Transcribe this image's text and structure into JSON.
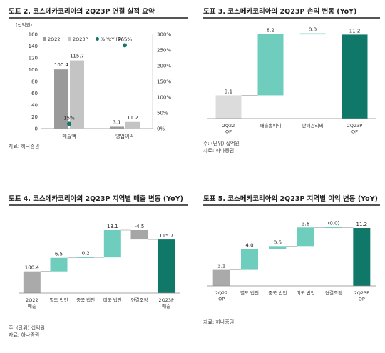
{
  "charts": {
    "c2": {
      "title": "도표 2. 코스메카코리아의 2Q23P 연결 실적 요약",
      "notes": [
        "자료: 하나증권"
      ],
      "chart_data": {
        "type": "bar",
        "categories": [
          "매출액",
          "영업이익"
        ],
        "series": [
          {
            "name": "2Q22",
            "values": [
              100.4,
              3.1
            ],
            "color": "#9a9a9a"
          },
          {
            "name": "2Q23P",
            "values": [
              115.7,
              11.2
            ],
            "color": "#c4c4c4"
          }
        ],
        "yoy": {
          "name": "% YoY (우)",
          "values": [
            15,
            265
          ],
          "labels": [
            "15%",
            "265%"
          ],
          "color": "#0f7868"
        },
        "y_unit_label": "(십억원)",
        "ylim": [
          0,
          160
        ],
        "yticks": [
          0,
          20,
          40,
          60,
          80,
          100,
          120,
          140,
          160
        ],
        "y2lim": [
          0,
          300
        ],
        "y2ticks": [
          "0%",
          "50%",
          "100%",
          "150%",
          "200%",
          "250%",
          "300%"
        ]
      }
    },
    "c3": {
      "title": "도표 3. 코스메카코리아의 2Q23P 손익 변동 (YoY)",
      "notes": [
        "주: (단위) 십억원",
        "자료: 하나증권"
      ],
      "chart_data": {
        "type": "waterfall",
        "categories": [
          "2Q22\nOP",
          "매출총이익",
          "판매관리비",
          "2Q23P\nOP"
        ],
        "values": [
          3.1,
          8.2,
          0.0,
          11.2
        ],
        "labels": [
          "3.1",
          "8.2",
          "0.0",
          "11.2"
        ],
        "kinds": [
          "total",
          "delta",
          "delta",
          "total"
        ],
        "colors": {
          "start": "#dcdcdc",
          "up": "#6ecdbd",
          "down": "#a6a6a6",
          "end": "#0f7868"
        },
        "ymax": 12
      }
    },
    "c4": {
      "title": "도표 4. 코스메카코리아의 2Q23P 지역별 매출 변동 (YoY)",
      "notes": [
        "주: (단위) 십억원",
        "자료: 하나증권"
      ],
      "chart_data": {
        "type": "waterfall",
        "categories": [
          "2Q22\n매출",
          "별도 법인",
          "중국 법인",
          "미국 법인",
          "연결조정",
          "2Q23P\n매출"
        ],
        "values": [
          100.4,
          6.5,
          0.2,
          13.1,
          -4.5,
          115.7
        ],
        "labels": [
          "100.4",
          "6.5",
          "0.2",
          "13.1",
          "-4.5",
          "115.7"
        ],
        "kinds": [
          "total",
          "delta",
          "delta",
          "delta",
          "delta",
          "total"
        ],
        "colors": {
          "start": "#aaaaaa",
          "up": "#6ecdbd",
          "down": "#a6a6a6",
          "end": "#0f7868"
        },
        "ymin": 90,
        "ymax": 125
      }
    },
    "c5": {
      "title": "도표 5. 코스메카코리아의 2Q23P 지역별 이익 변동 (YoY)",
      "notes": [
        "자료: 하나증권"
      ],
      "chart_data": {
        "type": "waterfall",
        "categories": [
          "2Q22\nOP",
          "별도 법인",
          "중국 법인",
          "미국 법인",
          "연결조정",
          "2Q23P\nOP"
        ],
        "values": [
          3.1,
          4.0,
          0.6,
          3.6,
          0.0,
          11.2
        ],
        "labels": [
          "3.1",
          "4.0",
          "0.6",
          "3.6",
          "(0.0)",
          "11.2"
        ],
        "kinds": [
          "total",
          "delta",
          "delta",
          "delta",
          "delta",
          "total"
        ],
        "colors": {
          "start": "#aaaaaa",
          "up": "#6ecdbd",
          "down": "#a6a6a6",
          "end": "#0f7868"
        },
        "ymin": 0,
        "ymax": 13
      }
    }
  }
}
